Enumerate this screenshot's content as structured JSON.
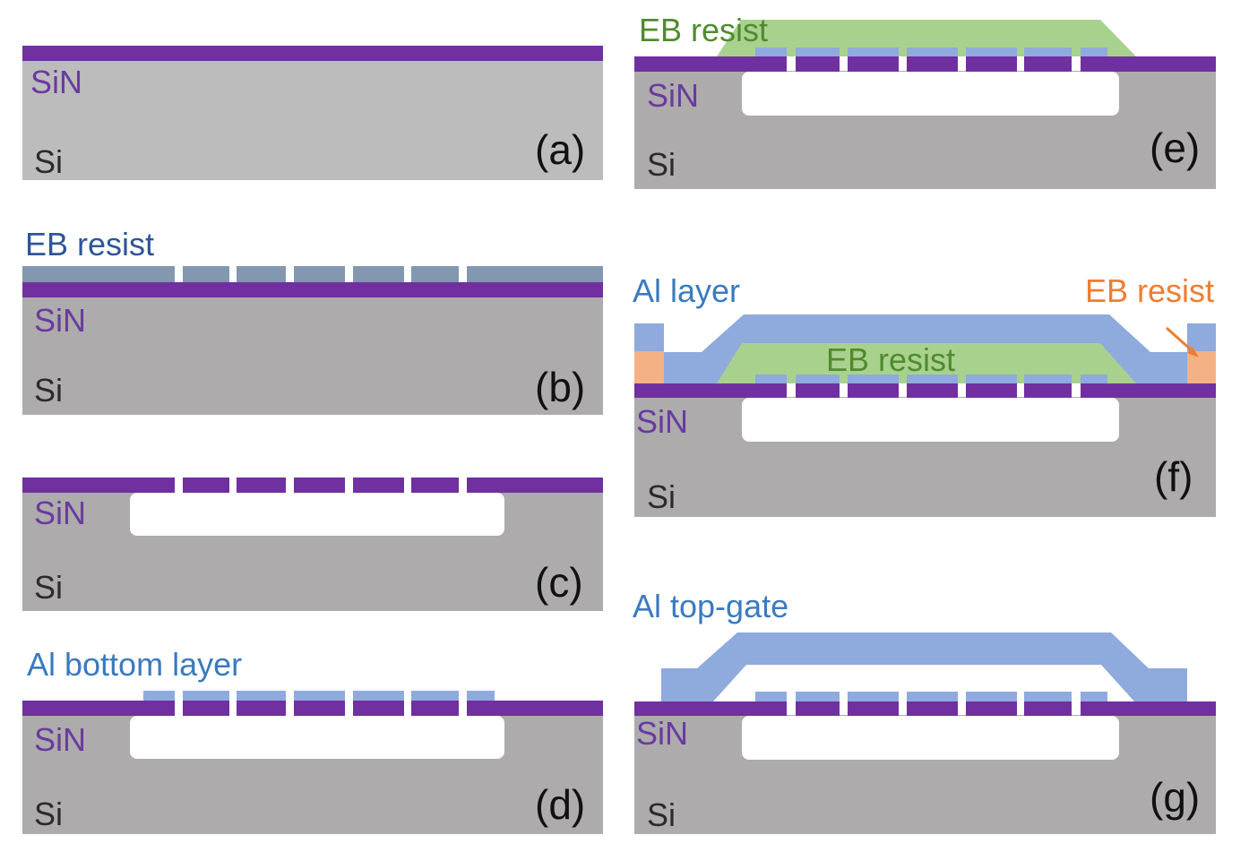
{
  "colors": {
    "si": "#adabab",
    "si_light": "#bcbcbc",
    "sin": "#7030a0",
    "eb_resist_b": "#8497b0",
    "eb_resist_green": "#a9d18e",
    "al": "#8faadc",
    "eb_resist_orange": "#f4b183",
    "cavity": "#ffffff"
  },
  "labels": {
    "sin": "SiN",
    "si": "Si",
    "eb_resist": "EB resist",
    "al_bottom_layer": "Al bottom layer",
    "al_layer": "Al layer",
    "al_top_gate": "Al top-gate"
  },
  "steps": {
    "a": "(a)",
    "b": "(b)",
    "c": "(c)",
    "d": "(d)",
    "e": "(e)",
    "f": "(f)",
    "g": "(g)"
  }
}
